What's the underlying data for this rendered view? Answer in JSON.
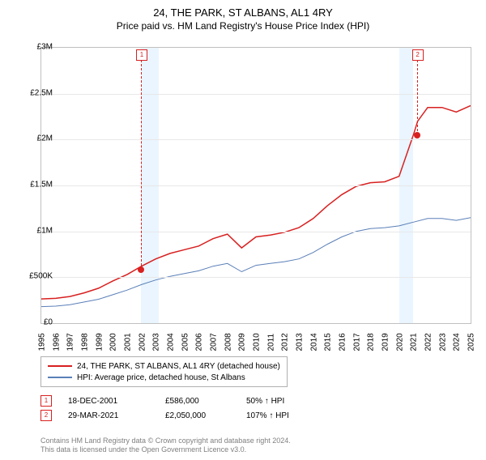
{
  "title": "24, THE PARK, ST ALBANS, AL1 4RY",
  "subtitle": "Price paid vs. HM Land Registry's House Price Index (HPI)",
  "chart": {
    "type": "line",
    "background_color": "#ffffff",
    "grid_color": "#e8e8e8",
    "border_color": "#c0c0c0",
    "ylim": [
      0,
      3000000
    ],
    "ytick_step": 500000,
    "ytick_labels": [
      "£0",
      "£500K",
      "£1M",
      "£1.5M",
      "£2M",
      "£2.5M",
      "£3M"
    ],
    "xlim": [
      1995,
      2025
    ],
    "xtick_step": 1,
    "xtick_labels": [
      "1995",
      "1996",
      "1997",
      "1998",
      "1999",
      "2000",
      "2001",
      "2002",
      "2003",
      "2004",
      "2005",
      "2006",
      "2007",
      "2008",
      "2009",
      "2010",
      "2011",
      "2012",
      "2013",
      "2014",
      "2015",
      "2016",
      "2017",
      "2018",
      "2019",
      "2020",
      "2021",
      "2022",
      "2023",
      "2024",
      "2025"
    ],
    "shade_ranges": [
      {
        "start": 2001.96,
        "end": 2003.2,
        "color": "rgba(173,216,255,0.25)"
      },
      {
        "start": 2020.0,
        "end": 2021.0,
        "color": "rgba(173,216,255,0.25)"
      }
    ],
    "series": [
      {
        "name": "property_price",
        "label": "24, THE PARK, ST ALBANS, AL1 4RY (detached house)",
        "color": "#d82020",
        "line_width": 1.5,
        "data": [
          [
            1995,
            264000
          ],
          [
            1996,
            270000
          ],
          [
            1997,
            290000
          ],
          [
            1998,
            330000
          ],
          [
            1999,
            380000
          ],
          [
            2000,
            460000
          ],
          [
            2001,
            530000
          ],
          [
            2002,
            620000
          ],
          [
            2003,
            700000
          ],
          [
            2004,
            760000
          ],
          [
            2005,
            800000
          ],
          [
            2006,
            840000
          ],
          [
            2007,
            920000
          ],
          [
            2008,
            970000
          ],
          [
            2009,
            820000
          ],
          [
            2010,
            940000
          ],
          [
            2011,
            960000
          ],
          [
            2012,
            990000
          ],
          [
            2013,
            1040000
          ],
          [
            2014,
            1140000
          ],
          [
            2015,
            1280000
          ],
          [
            2016,
            1400000
          ],
          [
            2017,
            1490000
          ],
          [
            2018,
            1530000
          ],
          [
            2019,
            1540000
          ],
          [
            2020,
            1600000
          ],
          [
            2021,
            2050000
          ],
          [
            2021.3,
            2200000
          ],
          [
            2022,
            2350000
          ],
          [
            2023,
            2350000
          ],
          [
            2024,
            2300000
          ],
          [
            2025,
            2370000
          ]
        ]
      },
      {
        "name": "hpi",
        "label": "HPI: Average price, detached house, St Albans",
        "color": "#5a7fb8",
        "line_width": 1,
        "data": [
          [
            1995,
            180000
          ],
          [
            1996,
            185000
          ],
          [
            1997,
            200000
          ],
          [
            1998,
            230000
          ],
          [
            1999,
            260000
          ],
          [
            2000,
            310000
          ],
          [
            2001,
            360000
          ],
          [
            2002,
            420000
          ],
          [
            2003,
            470000
          ],
          [
            2004,
            510000
          ],
          [
            2005,
            540000
          ],
          [
            2006,
            570000
          ],
          [
            2007,
            620000
          ],
          [
            2008,
            650000
          ],
          [
            2009,
            560000
          ],
          [
            2010,
            630000
          ],
          [
            2011,
            650000
          ],
          [
            2012,
            670000
          ],
          [
            2013,
            700000
          ],
          [
            2014,
            770000
          ],
          [
            2015,
            860000
          ],
          [
            2016,
            940000
          ],
          [
            2017,
            1000000
          ],
          [
            2018,
            1030000
          ],
          [
            2019,
            1040000
          ],
          [
            2020,
            1060000
          ],
          [
            2021,
            1100000
          ],
          [
            2022,
            1140000
          ],
          [
            2023,
            1140000
          ],
          [
            2024,
            1120000
          ],
          [
            2025,
            1150000
          ]
        ]
      }
    ],
    "markers": [
      {
        "id": "1",
        "x": 2001.96,
        "y": 586000
      },
      {
        "id": "2",
        "x": 2021.24,
        "y": 2050000
      }
    ]
  },
  "legend": {
    "items": [
      {
        "color": "#d82020",
        "label": "24, THE PARK, ST ALBANS, AL1 4RY (detached house)"
      },
      {
        "color": "#5a7fb8",
        "label": "HPI: Average price, detached house, St Albans"
      }
    ]
  },
  "sales": [
    {
      "marker": "1",
      "date": "18-DEC-2001",
      "price": "£586,000",
      "hpi_delta": "50% ↑ HPI"
    },
    {
      "marker": "2",
      "date": "29-MAR-2021",
      "price": "£2,050,000",
      "hpi_delta": "107% ↑ HPI"
    }
  ],
  "footer": {
    "line1": "Contains HM Land Registry data © Crown copyright and database right 2024.",
    "line2": "This data is licensed under the Open Government Licence v3.0."
  },
  "colors": {
    "marker_border": "#d82020",
    "footer_text": "#808080"
  },
  "fontsize": {
    "title": 13,
    "subtitle": 12,
    "axis": 10,
    "legend": 10,
    "footer": 9
  }
}
